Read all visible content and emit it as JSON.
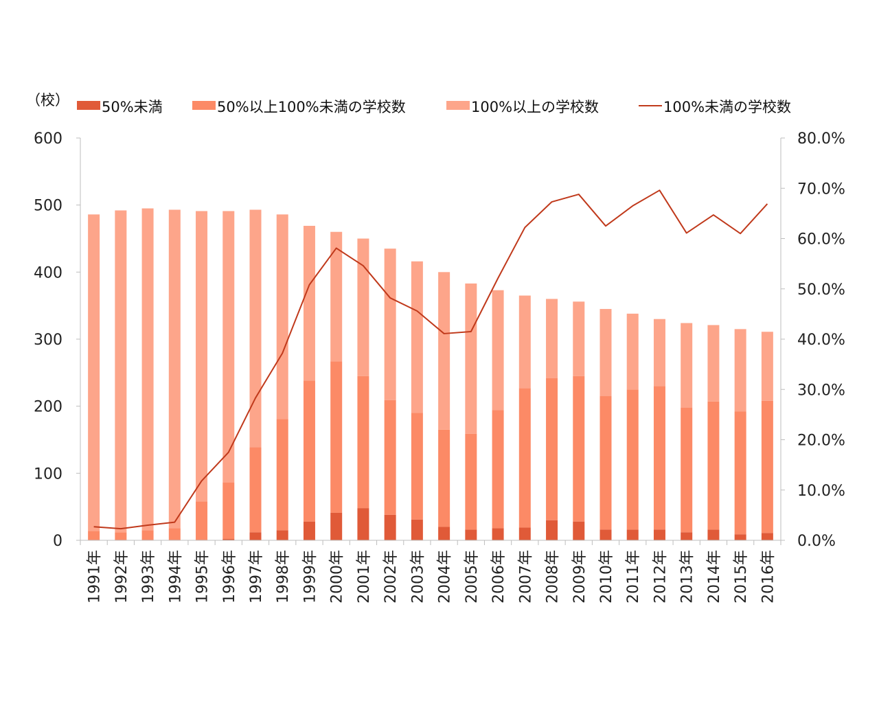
{
  "chart_data": {
    "type": "bar",
    "y_unit_label": "（校）",
    "categories": [
      "1991年",
      "1992年",
      "1993年",
      "1994年",
      "1995年",
      "1996年",
      "1997年",
      "1998年",
      "1999年",
      "2000年",
      "2001年",
      "2002年",
      "2003年",
      "2004年",
      "2005年",
      "2006年",
      "2007年",
      "2008年",
      "2009年",
      "2010年",
      "2011年",
      "2012年",
      "2013年",
      "2014年",
      "2015年",
      "2016年"
    ],
    "series": [
      {
        "name": "50%未満",
        "kind": "bar",
        "stack": "schools",
        "axis": "left",
        "color": "#E05A38",
        "values": [
          0,
          0,
          0,
          0,
          0,
          2,
          12,
          15,
          28,
          41,
          48,
          38,
          31,
          20,
          16,
          18,
          19,
          30,
          28,
          16,
          16,
          16,
          12,
          16,
          9,
          11
        ]
      },
      {
        "name": "50%以上100%未満の学校数",
        "kind": "bar",
        "stack": "schools",
        "axis": "left",
        "color": "#FC8A66",
        "values": [
          14,
          12,
          15,
          18,
          58,
          84,
          127,
          166,
          210,
          226,
          197,
          171,
          159,
          145,
          143,
          176,
          208,
          212,
          217,
          199,
          209,
          214,
          186,
          191,
          183,
          197
        ]
      },
      {
        "name": "100%以上の学校数",
        "kind": "bar",
        "stack": "schools",
        "axis": "left",
        "color": "#FDA58A",
        "values": [
          472,
          480,
          480,
          475,
          433,
          405,
          354,
          305,
          231,
          193,
          205,
          226,
          226,
          235,
          224,
          179,
          138,
          118,
          111,
          130,
          113,
          100,
          126,
          114,
          123,
          103
        ]
      },
      {
        "name": "100%未満の学校数",
        "kind": "line",
        "axis": "right",
        "color": "#C0391B",
        "values": [
          0.027,
          0.023,
          0.03,
          0.036,
          0.118,
          0.175,
          0.283,
          0.372,
          0.508,
          0.581,
          0.546,
          0.482,
          0.456,
          0.411,
          0.415,
          0.521,
          0.622,
          0.673,
          0.688,
          0.625,
          0.665,
          0.696,
          0.611,
          0.647,
          0.61,
          0.669
        ]
      }
    ],
    "y_left": {
      "min": 0,
      "max": 600,
      "ticks": [
        0,
        100,
        200,
        300,
        400,
        500,
        600
      ]
    },
    "y_right": {
      "min": 0,
      "max": 0.8,
      "ticks": [
        "0.0%",
        "10.0%",
        "20.0%",
        "30.0%",
        "40.0%",
        "50.0%",
        "60.0%",
        "70.0%",
        "80.0%"
      ]
    },
    "legend_position": "top",
    "grid": false
  }
}
